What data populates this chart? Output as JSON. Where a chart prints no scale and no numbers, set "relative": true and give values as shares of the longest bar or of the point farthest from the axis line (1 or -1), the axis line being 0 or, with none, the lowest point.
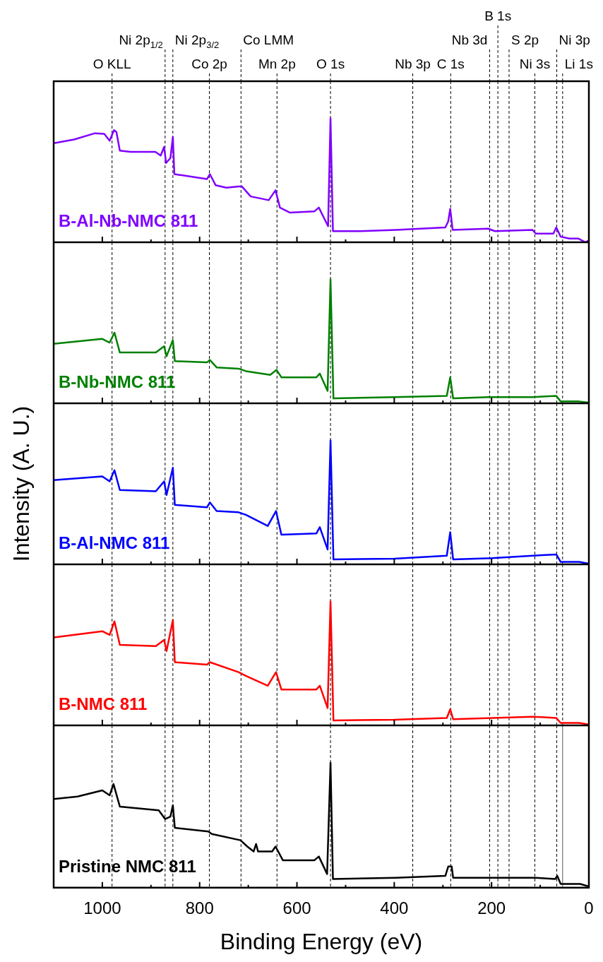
{
  "chart_data": [
    {
      "type": "line",
      "relative": true,
      "tick_labels": false,
      "xlim": [
        1100,
        0
      ],
      "xticks": [
        1000,
        {
          "value": 900,
          "label": null
        },
        800,
        {
          "value": 700,
          "label": null
        },
        600,
        {
          "value": 500,
          "label": null
        },
        400,
        {
          "value": 300,
          "label": null
        },
        200,
        {
          "value": 100,
          "label": null
        },
        0
      ],
      "x": [
        1100,
        1058,
        1015,
        996,
        985,
        976,
        971,
        964,
        942,
        891,
        880,
        873,
        869,
        860,
        855,
        852,
        818,
        785,
        779,
        767,
        745,
        720,
        713,
        695,
        658,
        644,
        635,
        615,
        564,
        555,
        536,
        531,
        526,
        469,
        396,
        295,
        289,
        285,
        280,
        207,
        193,
        116,
        109,
        73,
        67,
        58,
        40,
        22,
        7,
        0
      ],
      "series": [
        {
          "name": "B-Al-Nb-NMC 811",
          "color": "#8000ff",
          "values": [
            0.8,
            0.83,
            0.88,
            0.875,
            0.82,
            0.905,
            0.89,
            0.74,
            0.73,
            0.73,
            0.7,
            0.77,
            0.64,
            0.68,
            0.85,
            0.55,
            0.53,
            0.51,
            0.55,
            0.46,
            0.44,
            0.45,
            0.45,
            0.37,
            0.34,
            0.42,
            0.28,
            0.24,
            0.25,
            0.28,
            0.13,
            1.0,
            0.09,
            0.09,
            0.1,
            0.12,
            0.17,
            0.27,
            0.1,
            0.11,
            0.09,
            0.1,
            0.07,
            0.07,
            0.12,
            0.045,
            0.03,
            0.03,
            0,
            0.015
          ]
        }
      ],
      "ref_lines": [
        {
          "axis": "x",
          "value": 980,
          "label": "O KLL"
        },
        {
          "axis": "x",
          "value": 871,
          "label": "Ni 2p$_{1/2}$"
        },
        {
          "axis": "x",
          "value": 855,
          "label": "Ni 2p$_{3/2}$"
        },
        {
          "axis": "x",
          "value": 780,
          "label": "Co 2p"
        },
        {
          "axis": "x",
          "value": 715,
          "label": "Co LMM"
        },
        {
          "axis": "x",
          "value": 641,
          "label": "Mn 2p"
        },
        {
          "axis": "x",
          "value": 531,
          "label": "O 1s"
        },
        {
          "axis": "x",
          "value": 362,
          "label": "Nb 3p"
        },
        {
          "axis": "x",
          "value": 284,
          "label": "C 1s"
        },
        {
          "axis": "x",
          "value": 204,
          "label": "Nb 3d"
        },
        {
          "axis": "x",
          "value": 187,
          "label": "B 1s"
        },
        {
          "axis": "x",
          "value": 164,
          "label": "S 2p"
        },
        {
          "axis": "x",
          "value": 111,
          "label": "Ni 3s"
        },
        {
          "axis": "x",
          "value": 66,
          "label": "Ni 3p"
        },
        {
          "axis": "x",
          "value": 54,
          "label": "Li 1s"
        }
      ]
    },
    {
      "type": "line",
      "relative": true,
      "tick_labels": false,
      "xlim": [
        1100,
        0
      ],
      "xticks": [
        1000,
        {
          "value": 900,
          "label": null
        },
        800,
        {
          "value": 700,
          "label": null
        },
        600,
        {
          "value": 500,
          "label": null
        },
        400,
        {
          "value": 300,
          "label": null
        },
        200,
        {
          "value": 100,
          "label": null
        },
        0
      ],
      "x": [
        1100,
        1000,
        985,
        975,
        964,
        890,
        873,
        868,
        855,
        851,
        785,
        779,
        765,
        720,
        705,
        655,
        642,
        632,
        560,
        553,
        537,
        531,
        525,
        400,
        292,
        285,
        279,
        207,
        115,
        67,
        58,
        20,
        0
      ],
      "series": [
        {
          "name": "B-Nb-NMC 811",
          "color": "#008000",
          "values": [
            0.48,
            0.52,
            0.49,
            0.57,
            0.41,
            0.41,
            0.46,
            0.38,
            0.51,
            0.34,
            0.33,
            0.35,
            0.29,
            0.28,
            0.26,
            0.23,
            0.27,
            0.21,
            0.21,
            0.24,
            0.1,
            1.0,
            0.04,
            0.05,
            0.06,
            0.21,
            0.04,
            0.05,
            0.05,
            0.06,
            0.015,
            0.015,
            0.005
          ]
        }
      ],
      "ref_lines": [
        {
          "axis": "x",
          "value": 980
        },
        {
          "axis": "x",
          "value": 871
        },
        {
          "axis": "x",
          "value": 855
        },
        {
          "axis": "x",
          "value": 780
        },
        {
          "axis": "x",
          "value": 715
        },
        {
          "axis": "x",
          "value": 641
        },
        {
          "axis": "x",
          "value": 531
        },
        {
          "axis": "x",
          "value": 362
        },
        {
          "axis": "x",
          "value": 284
        },
        {
          "axis": "x",
          "value": 204
        },
        {
          "axis": "x",
          "value": 187
        },
        {
          "axis": "x",
          "value": 164
        },
        {
          "axis": "x",
          "value": 111
        },
        {
          "axis": "x",
          "value": 66
        },
        {
          "axis": "x",
          "value": 54
        }
      ]
    },
    {
      "type": "line",
      "relative": true,
      "tick_labels": false,
      "ylabel": "Intensity (A. U.)",
      "xlim": [
        1100,
        0
      ],
      "xticks": [
        1000,
        {
          "value": 900,
          "label": null
        },
        800,
        {
          "value": 700,
          "label": null
        },
        600,
        {
          "value": 500,
          "label": null
        },
        400,
        {
          "value": 300,
          "label": null
        },
        200,
        {
          "value": 100,
          "label": null
        },
        0
      ],
      "x": [
        1100,
        1000,
        985,
        975,
        964,
        890,
        873,
        868,
        855,
        851,
        785,
        779,
        765,
        720,
        705,
        660,
        643,
        632,
        560,
        553,
        537,
        531,
        525,
        400,
        292,
        285,
        279,
        200,
        115,
        67,
        58,
        20,
        0
      ],
      "series": [
        {
          "name": "B-Al-NMC 811",
          "color": "#0000ff",
          "values": [
            0.68,
            0.71,
            0.67,
            0.76,
            0.6,
            0.59,
            0.67,
            0.56,
            0.78,
            0.48,
            0.46,
            0.5,
            0.43,
            0.42,
            0.4,
            0.31,
            0.43,
            0.24,
            0.25,
            0.3,
            0.12,
            1.0,
            0.04,
            0.045,
            0.07,
            0.26,
            0.04,
            0.05,
            0.07,
            0.08,
            0.02,
            0.02,
            0.005
          ]
        }
      ],
      "ref_lines": [
        {
          "axis": "x",
          "value": 980
        },
        {
          "axis": "x",
          "value": 871
        },
        {
          "axis": "x",
          "value": 855
        },
        {
          "axis": "x",
          "value": 780
        },
        {
          "axis": "x",
          "value": 715
        },
        {
          "axis": "x",
          "value": 641
        },
        {
          "axis": "x",
          "value": 531
        },
        {
          "axis": "x",
          "value": 362
        },
        {
          "axis": "x",
          "value": 284
        },
        {
          "axis": "x",
          "value": 204
        },
        {
          "axis": "x",
          "value": 187
        },
        {
          "axis": "x",
          "value": 164
        },
        {
          "axis": "x",
          "value": 111
        },
        {
          "axis": "x",
          "value": 66
        },
        {
          "axis": "x",
          "value": 54
        }
      ]
    },
    {
      "type": "line",
      "relative": true,
      "tick_labels": false,
      "xlim": [
        1100,
        0
      ],
      "xticks": [
        1000,
        {
          "value": 900,
          "label": null
        },
        800,
        {
          "value": 700,
          "label": null
        },
        600,
        {
          "value": 500,
          "label": null
        },
        400,
        {
          "value": 300,
          "label": null
        },
        200,
        {
          "value": 100,
          "label": null
        },
        0
      ],
      "x": [
        1100,
        1000,
        985,
        975,
        964,
        890,
        873,
        868,
        855,
        851,
        785,
        779,
        720,
        705,
        660,
        643,
        632,
        560,
        553,
        537,
        531,
        525,
        400,
        292,
        285,
        279,
        115,
        67,
        58,
        20,
        0
      ],
      "series": [
        {
          "name": "B-NMC 811",
          "color": "#ff0000",
          "values": [
            0.71,
            0.76,
            0.73,
            0.84,
            0.65,
            0.64,
            0.69,
            0.6,
            0.85,
            0.51,
            0.49,
            0.51,
            0.43,
            0.4,
            0.32,
            0.43,
            0.29,
            0.29,
            0.32,
            0.14,
            1.0,
            0.04,
            0.045,
            0.06,
            0.13,
            0.05,
            0.07,
            0.06,
            0.02,
            0.02,
            0.007
          ]
        }
      ],
      "ref_lines": [
        {
          "axis": "x",
          "value": 980
        },
        {
          "axis": "x",
          "value": 871
        },
        {
          "axis": "x",
          "value": 855
        },
        {
          "axis": "x",
          "value": 780
        },
        {
          "axis": "x",
          "value": 715
        },
        {
          "axis": "x",
          "value": 641
        },
        {
          "axis": "x",
          "value": 531
        },
        {
          "axis": "x",
          "value": 362
        },
        {
          "axis": "x",
          "value": 284
        },
        {
          "axis": "x",
          "value": 204
        },
        {
          "axis": "x",
          "value": 187
        },
        {
          "axis": "x",
          "value": 164
        },
        {
          "axis": "x",
          "value": 111
        },
        {
          "axis": "x",
          "value": 66
        },
        {
          "axis": "x",
          "value": 54
        }
      ]
    },
    {
      "type": "line",
      "relative": true,
      "tick_labels": "x",
      "xlabel": "Binding Energy (eV)",
      "xlim": [
        1100,
        0
      ],
      "xticks": [
        1000,
        {
          "value": 900,
          "label": null
        },
        800,
        {
          "value": 700,
          "label": null
        },
        600,
        {
          "value": 500,
          "label": null
        },
        400,
        {
          "value": 300,
          "label": null
        },
        200,
        {
          "value": 100,
          "label": null
        },
        0
      ],
      "x": [
        1100,
        1051,
        1000,
        985,
        977,
        964,
        884,
        871,
        860,
        855,
        851,
        782,
        775,
        716,
        702,
        689,
        684,
        680,
        651,
        644,
        629,
        564,
        555,
        538,
        531,
        526,
        396,
        295,
        289,
        282,
        279,
        171,
        113,
        69,
        65,
        58,
        18,
        0
      ],
      "series": [
        {
          "name": "Pristine NMC 811",
          "color": "#000000",
          "values": [
            0.71,
            0.73,
            0.78,
            0.74,
            0.83,
            0.65,
            0.62,
            0.55,
            0.57,
            0.66,
            0.48,
            0.45,
            0.43,
            0.38,
            0.33,
            0.29,
            0.35,
            0.29,
            0.29,
            0.33,
            0.22,
            0.22,
            0.25,
            0.11,
            1.0,
            0.07,
            0.08,
            0.095,
            0.17,
            0.17,
            0.08,
            0.08,
            0.08,
            0.07,
            0.095,
            0.03,
            0.03,
            0.01
          ]
        }
      ],
      "ref_lines": [
        {
          "axis": "x",
          "value": 980
        },
        {
          "axis": "x",
          "value": 871
        },
        {
          "axis": "x",
          "value": 855
        },
        {
          "axis": "x",
          "value": 780
        },
        {
          "axis": "x",
          "value": 715
        },
        {
          "axis": "x",
          "value": 641
        },
        {
          "axis": "x",
          "value": 531
        },
        {
          "axis": "x",
          "value": 362
        },
        {
          "axis": "x",
          "value": 284
        },
        {
          "axis": "x",
          "value": 204
        },
        {
          "axis": "x",
          "value": 187
        },
        {
          "axis": "x",
          "value": 164
        },
        {
          "axis": "x",
          "value": 111
        },
        {
          "axis": "x",
          "value": 66
        },
        {
          "axis": "x",
          "value": 54,
          "line_style": "solid"
        }
      ]
    }
  ]
}
